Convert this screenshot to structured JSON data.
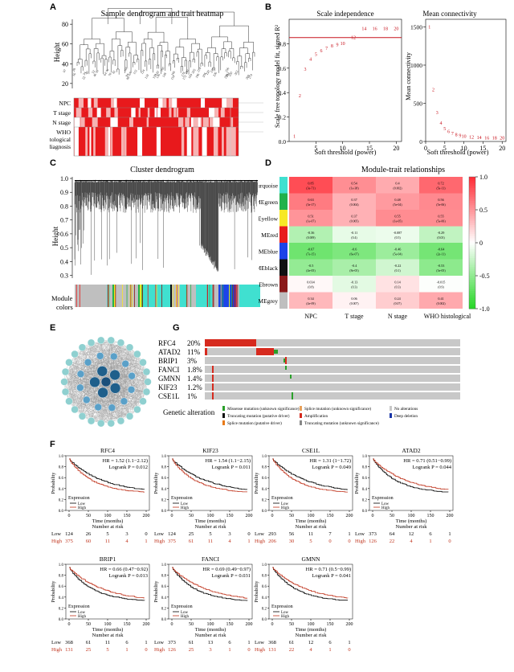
{
  "panel_labels": {
    "a": "A",
    "b": "B",
    "c": "C",
    "d": "D",
    "e": "E",
    "f": "F",
    "g": "G"
  },
  "colors": {
    "trait_red": "#e8191c",
    "trait_light": "#f6b3b3",
    "module_turquoise": "#40e0d0",
    "module_green": "#22b14c",
    "module_yellow": "#f7e826",
    "module_red": "#e81c1c",
    "module_blue": "#1c44e8",
    "module_black": "#111111",
    "module_brown": "#8b1a1a",
    "module_grey": "#bfbfbf",
    "heat_pos": "#e8111a",
    "heat_neg": "#1fc52b",
    "amp": "#d62a1e",
    "node_dark": "#1f5f8b",
    "node_mid": "#5aa0c8",
    "node_light": "#8fd0d0",
    "km_low": "#000000",
    "km_high": "#c0341d"
  },
  "chart_data": [
    {
      "id": "A",
      "type": "heatmap",
      "title": "Sample dendrogram and trait heatmap",
      "ylabel": "Height",
      "yticks": [
        "80",
        "60",
        "40",
        "20"
      ],
      "ylim": [
        15,
        85
      ],
      "traits": [
        "NPC",
        "T stage",
        "N stage",
        "WHO",
        "histological",
        "diagnosis"
      ]
    },
    {
      "id": "B1",
      "type": "scatter",
      "title": "Scale independence",
      "xlabel": "Soft threshold (power)",
      "ylabel": "Scale free topology model fit, signed R²",
      "xticks": [
        "5",
        "10",
        "15",
        "20"
      ],
      "yticks": [
        "0.0",
        "0.2",
        "0.4",
        "0.6",
        "0.8"
      ],
      "xlim": [
        0,
        21
      ],
      "ylim": [
        0,
        1.0
      ],
      "cutoff": 0.85,
      "points": [
        {
          "x": 1,
          "y": 0.05,
          "label": "1"
        },
        {
          "x": 2,
          "y": 0.38,
          "label": "2"
        },
        {
          "x": 3,
          "y": 0.6,
          "label": "3"
        },
        {
          "x": 4,
          "y": 0.68,
          "label": "4"
        },
        {
          "x": 5,
          "y": 0.72,
          "label": "5"
        },
        {
          "x": 6,
          "y": 0.75,
          "label": "6"
        },
        {
          "x": 7,
          "y": 0.77,
          "label": "7"
        },
        {
          "x": 8,
          "y": 0.79,
          "label": "8"
        },
        {
          "x": 9,
          "y": 0.8,
          "label": "9"
        },
        {
          "x": 10,
          "y": 0.81,
          "label": "10"
        },
        {
          "x": 12,
          "y": 0.86,
          "label": "12"
        },
        {
          "x": 14,
          "y": 0.93,
          "label": "14"
        },
        {
          "x": 16,
          "y": 0.93,
          "label": "16"
        },
        {
          "x": 18,
          "y": 0.93,
          "label": "18"
        },
        {
          "x": 20,
          "y": 0.93,
          "label": "20"
        }
      ]
    },
    {
      "id": "B2",
      "type": "scatter",
      "title": "Mean connectivity",
      "xlabel": "Soft threshold (power)",
      "ylabel": "Mean connectivity",
      "xticks": [
        "0",
        "5",
        "10",
        "15",
        "20"
      ],
      "yticks": [
        "0",
        "500",
        "1000",
        "1500"
      ],
      "xlim": [
        0,
        21
      ],
      "ylim": [
        0,
        1600
      ],
      "points": [
        {
          "x": 1,
          "y": 1500,
          "label": "1"
        },
        {
          "x": 2,
          "y": 680,
          "label": "2"
        },
        {
          "x": 3,
          "y": 380,
          "label": "3"
        },
        {
          "x": 4,
          "y": 240,
          "label": "4"
        },
        {
          "x": 5,
          "y": 170,
          "label": "5"
        },
        {
          "x": 6,
          "y": 130,
          "label": "6"
        },
        {
          "x": 7,
          "y": 105,
          "label": "7"
        },
        {
          "x": 8,
          "y": 90,
          "label": "8"
        },
        {
          "x": 9,
          "y": 80,
          "label": "9"
        },
        {
          "x": 10,
          "y": 70,
          "label": "10"
        },
        {
          "x": 12,
          "y": 60,
          "label": "12"
        },
        {
          "x": 14,
          "y": 55,
          "label": "14"
        },
        {
          "x": 16,
          "y": 50,
          "label": "16"
        },
        {
          "x": 18,
          "y": 48,
          "label": "18"
        },
        {
          "x": 20,
          "y": 45,
          "label": "20"
        }
      ]
    },
    {
      "id": "C",
      "type": "other",
      "title": "Cluster dendrogram",
      "ylabel": "Height",
      "yticks": [
        "1.0",
        "0.9",
        "0.8",
        "0.7",
        "0.6",
        "0.5",
        "0.4",
        "0.3"
      ],
      "ylim": [
        0.28,
        1.0
      ],
      "color_bar_label": [
        "Module",
        "colors"
      ]
    },
    {
      "id": "D",
      "type": "heatmap",
      "title": "Module-trait relationships",
      "rows": [
        "MEturquoise",
        "MEgreen",
        "MEyellow",
        "MEred",
        "MEblue",
        "MEblack",
        "MEbrown",
        "MEgrey"
      ],
      "cols": [
        "NPC",
        "T stage",
        "N stage",
        "WHO histological\ndiagnosis"
      ],
      "values": [
        [
          0.85,
          0.54,
          0.4,
          0.72
        ],
        [
          0.63,
          0.37,
          0.48,
          0.56
        ],
        [
          0.51,
          0.37,
          0.55,
          0.55
        ],
        [
          -0.36,
          -0.11,
          -0.087,
          -0.29
        ],
        [
          -0.67,
          -0.6,
          -0.46,
          -0.64
        ],
        [
          -0.5,
          -0.4,
          -0.22,
          -0.53
        ],
        [
          0.034,
          -0.13,
          0.14,
          -0.015
        ],
        [
          0.34,
          0.06,
          0.24,
          0.41
        ]
      ],
      "pvalues": [
        [
          "(3e-71)",
          "(1e-38)",
          "(0.002)",
          "(5e-11)"
        ],
        [
          "(3e-17)",
          "(0.004)",
          "(5e-04)",
          "(5e-06)"
        ],
        [
          "(1e-07)",
          "(0.005)",
          "(1e-05)",
          "(5e-06)"
        ],
        [
          "(0.009)",
          "(0.4)",
          "(0.5)",
          "(0.03)"
        ],
        [
          "(7e-15)",
          "(6e-07)",
          "(5e-04)",
          "(2e-11)"
        ],
        [
          "(4e-05)",
          "(8e-05)",
          "(0.1)",
          "(3e-05)"
        ],
        [
          "(0.8)",
          "(0.3)",
          "(0.3)",
          "(0.9)"
        ],
        [
          "(4e-09)",
          "(0.007)",
          "(0.07)",
          "(0.002)"
        ]
      ],
      "scale_ticks": [
        "1.0",
        "0.5",
        "0",
        "-0.5",
        "-1.0"
      ]
    },
    {
      "id": "G",
      "type": "bar",
      "genes": [
        "RFC4",
        "ATAD2",
        "BRIP1",
        "FANCI",
        "GMNN",
        "KIF23",
        "CSE1L"
      ],
      "percent": [
        "20%",
        "11%",
        "3%",
        "1.8%",
        "1.4%",
        "1.2%",
        "1%"
      ],
      "values": [
        20,
        11,
        3,
        1.8,
        1.4,
        1.2,
        1
      ],
      "legend_title": "Genetic alteration",
      "legend": [
        "Missense mutation (unknown significance)",
        "Truncating mutation (putative driver)",
        "Splice mutation (putative driver)",
        "Splice mutation (unknown significance)",
        "Amplification",
        "Truncating mutation (unknown significance)",
        "No alterations",
        "Deep deletion"
      ]
    }
  ],
  "km": {
    "xlabel": "Time (months)",
    "ylabel": "Probability",
    "xticks": [
      "0",
      "50",
      "100",
      "150",
      "200"
    ],
    "yticks": [
      "0.0",
      "0.2",
      "0.4",
      "0.6",
      "0.8",
      "1.0"
    ],
    "legend_title": "Expression",
    "legend_low": "Low",
    "legend_high": "High",
    "risk_title": "Number at risk",
    "row_low": "Low",
    "row_high": "High",
    "plots": [
      {
        "gene": "RFC4",
        "hr": "HR = 1.52 (1.1−2.12)",
        "logrank": "Logrank P = 0.012",
        "low": [
          "124",
          "26",
          "5",
          "3",
          "0"
        ],
        "high": [
          "375",
          "60",
          "11",
          "4",
          "1"
        ],
        "high_worse": true
      },
      {
        "gene": "KIF23",
        "hr": "HR = 1.54 (1.1−2.15)",
        "logrank": "Logrank P = 0.011",
        "low": [
          "124",
          "25",
          "5",
          "3",
          "0"
        ],
        "high": [
          "375",
          "61",
          "11",
          "4",
          "1"
        ],
        "high_worse": true
      },
      {
        "gene": "CSE1L",
        "hr": "HR = 1.31 (1−1.72)",
        "logrank": "Logrank P = 0.049",
        "low": [
          "293",
          "56",
          "11",
          "7",
          "1"
        ],
        "high": [
          "206",
          "30",
          "5",
          "0",
          "0"
        ],
        "high_worse": true
      },
      {
        "gene": "ATAD2",
        "hr": "HR = 0.71 (0.51−0.99)",
        "logrank": "Logrank P = 0.044",
        "low": [
          "373",
          "64",
          "12",
          "6",
          "1"
        ],
        "high": [
          "126",
          "22",
          "4",
          "1",
          "0"
        ],
        "high_worse": false
      },
      {
        "gene": "BRIP1",
        "hr": "HR = 0.66 (0.47−0.92)",
        "logrank": "Logrank P = 0.013",
        "low": [
          "368",
          "61",
          "11",
          "6",
          "1"
        ],
        "high": [
          "131",
          "25",
          "5",
          "1",
          "0"
        ],
        "high_worse": false
      },
      {
        "gene": "FANCI",
        "hr": "HR = 0.69 (0.49−0.97)",
        "logrank": "Logrank P = 0.031",
        "low": [
          "373",
          "61",
          "13",
          "6",
          "1"
        ],
        "high": [
          "126",
          "25",
          "3",
          "1",
          "0"
        ],
        "high_worse": false
      },
      {
        "gene": "GMNN",
        "hr": "HR = 0.71 (0.5−0.99)",
        "logrank": "Logrank P = 0.041",
        "low": [
          "368",
          "61",
          "12",
          "6",
          "1"
        ],
        "high": [
          "131",
          "22",
          "4",
          "1",
          "0"
        ],
        "high_worse": false
      }
    ]
  }
}
